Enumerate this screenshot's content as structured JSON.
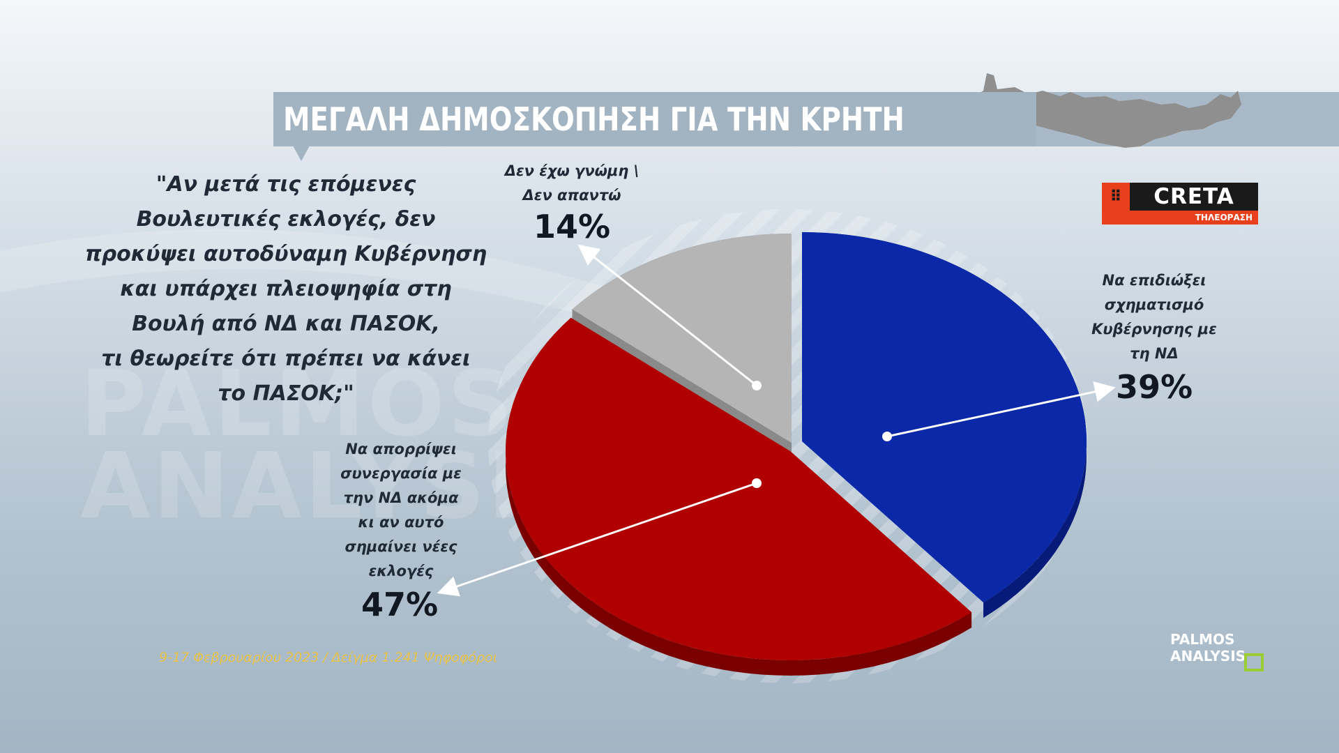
{
  "header": {
    "title": "ΜΕΓΑΛΗ ΔΗΜΟΣΚΟΠΗΣΗ ΓΙΑ ΤΗΝ ΚΡΗΤΗ"
  },
  "question": {
    "lines": [
      "\"Αν μετά τις επόμενες",
      "Βουλευτικές εκλογές, δεν",
      "προκύψει αυτοδύναμη Κυβέρνηση",
      "και υπάρχει πλειοψηφία στη",
      "Βουλή από ΝΔ και ΠΑΣΟΚ,",
      "τι θεωρείτε ότι πρέπει να κάνει",
      "το ΠΑΣΟΚ;\""
    ]
  },
  "watermark": {
    "line1": "PALMOS",
    "line2": "ANALYSIS"
  },
  "logos": {
    "creta_name": "CRETA",
    "creta_sub": "ΤΗΛΕΟΡΑΣΗ",
    "palmos_line1": "PALMOS",
    "palmos_line2": "ANALYSIS"
  },
  "footer": {
    "text": "9-17 Φεβρουαρίου 2023 / Δείγμα 1.241 Ψηφοφόροι"
  },
  "chart_data": {
    "type": "pie",
    "title": "",
    "slices": [
      {
        "label_lines": [
          "Να επιδιώξει",
          "σχηματισμό",
          "Κυβέρνησης με",
          "τη ΝΔ"
        ],
        "value": 39,
        "display": "39%",
        "color": "#0a28a8",
        "dark": "#061a7a"
      },
      {
        "label_lines": [
          "Να απορρίψει",
          "συνεργασία με",
          "την ΝΔ ακόμα",
          "κι αν αυτό",
          "σημαίνει νέες",
          "εκλογές"
        ],
        "value": 47,
        "display": "47%",
        "color": "#b10000",
        "dark": "#7a0000"
      },
      {
        "label_lines": [
          "Δεν έχω γνώμη \\",
          "Δεν απαντώ"
        ],
        "value": 14,
        "display": "14%",
        "color": "#b5b5b5",
        "dark": "#8a8a8a"
      }
    ],
    "legend": "none",
    "labels": "outside-with-arrows"
  }
}
